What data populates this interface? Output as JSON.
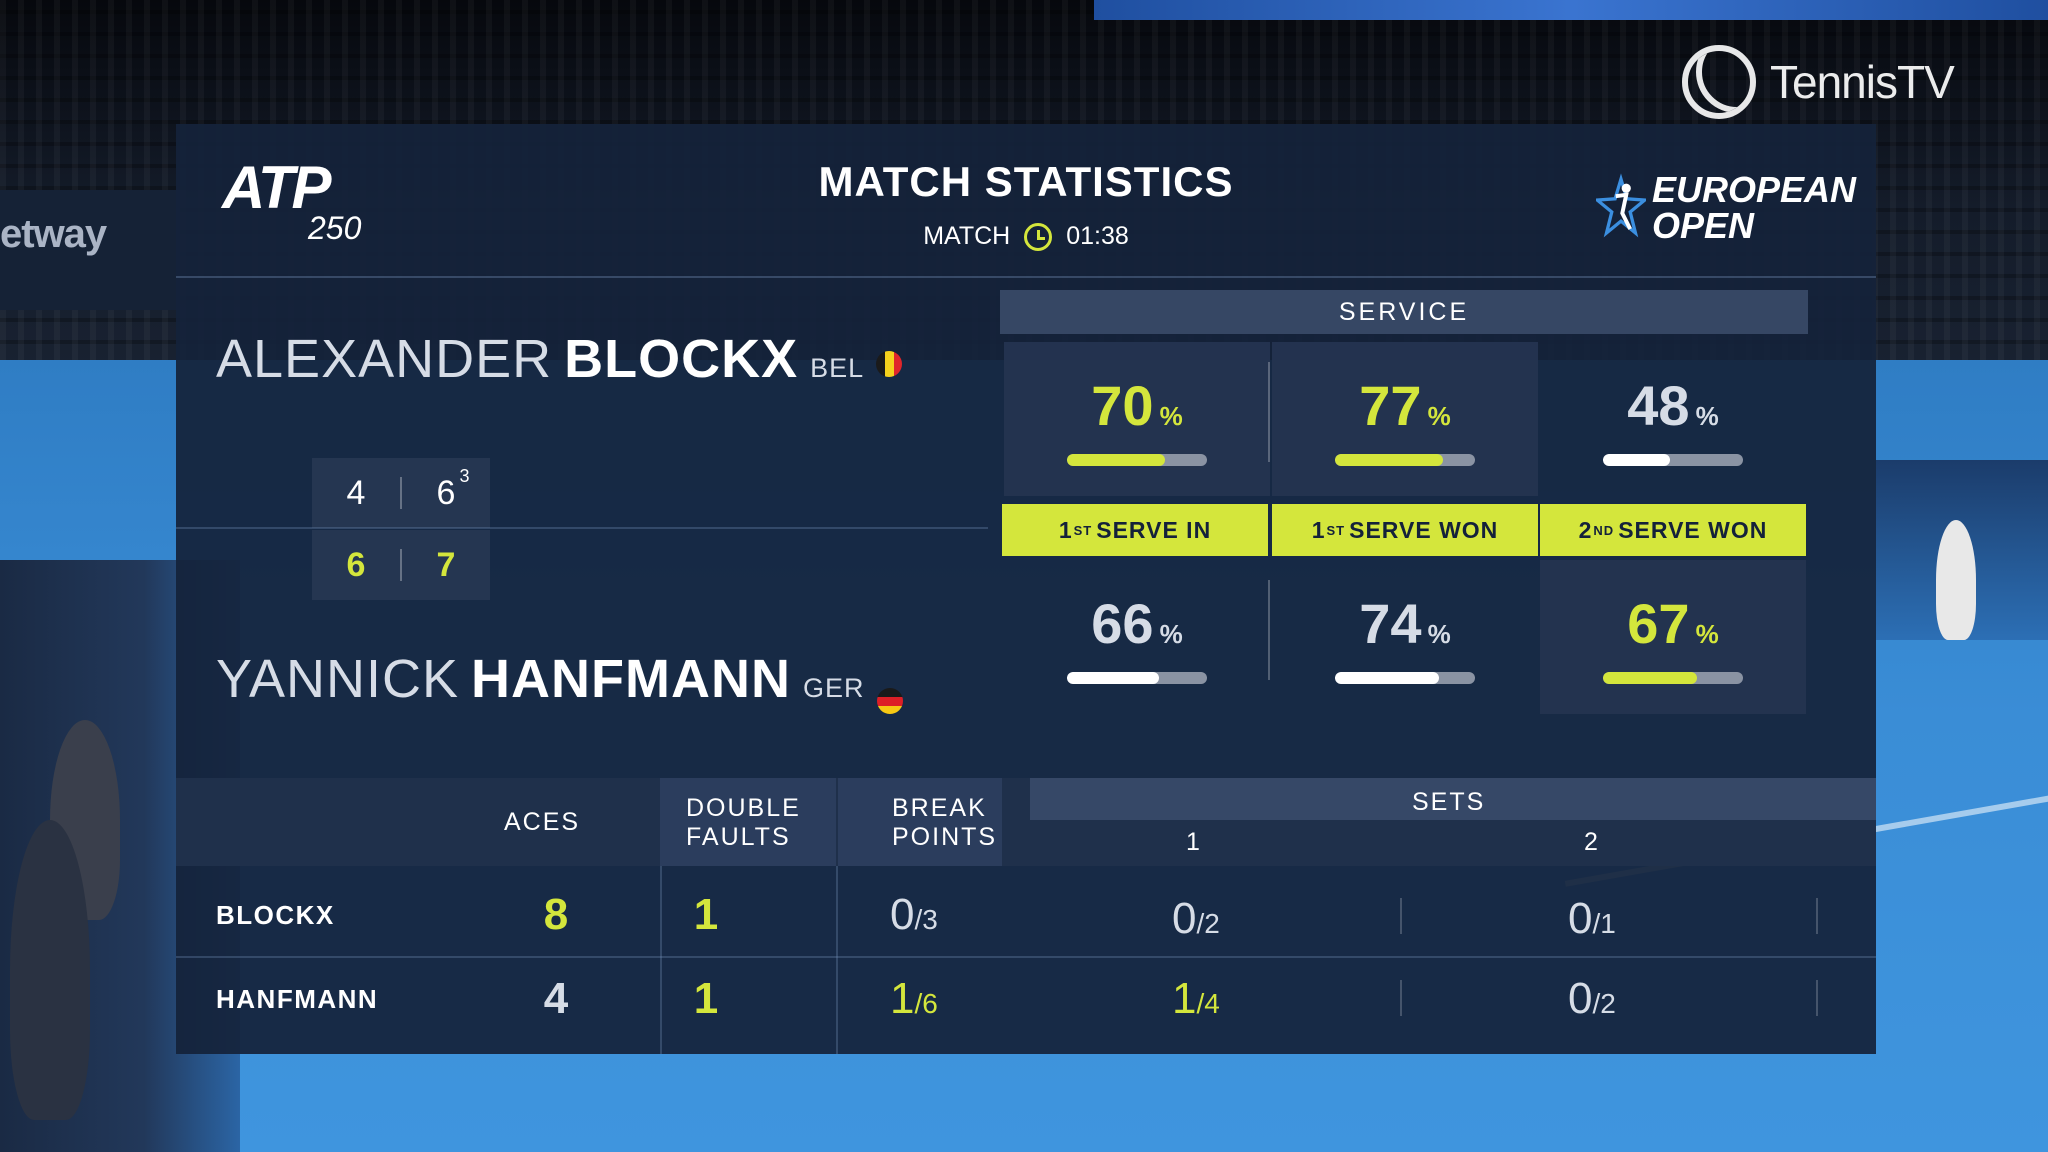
{
  "broadcaster": {
    "name": "TennisTV"
  },
  "background": {
    "sponsor_text": "etway"
  },
  "header": {
    "tour_logo": {
      "main": "ATP",
      "sub": "250"
    },
    "title": "MATCH STATISTICS",
    "match_label": "MATCH",
    "match_time": "01:38",
    "event_logo": {
      "line1": "EUROPEAN",
      "line2": "OPEN"
    }
  },
  "colors": {
    "accent": "#d4e63c",
    "panel": "#14223a",
    "text_muted": "#d6dce6"
  },
  "players": [
    {
      "first_name": "ALEXANDER",
      "last_name": "BLOCKX",
      "country": "BEL",
      "flag": [
        "#1a1a1a",
        "#f6d21c",
        "#e0262b"
      ],
      "sets": [
        {
          "games": "4",
          "tiebreak": ""
        },
        {
          "games": "6",
          "tiebreak": "3"
        }
      ]
    },
    {
      "first_name": "YANNICK",
      "last_name": "HANFMANN",
      "country": "GER",
      "flag": [
        "#1a1a1a",
        "#dd1f26",
        "#f7c913"
      ],
      "sets": [
        {
          "games": "6",
          "tiebreak": ""
        },
        {
          "games": "7",
          "tiebreak": ""
        }
      ]
    }
  ],
  "service": {
    "title": "SERVICE",
    "stats": [
      {
        "label_pre": "1",
        "label_sup": "ST",
        "label_post": "SERVE IN",
        "p1": 70,
        "p2": 66,
        "winner": "p1"
      },
      {
        "label_pre": "1",
        "label_sup": "ST",
        "label_post": "SERVE WON",
        "p1": 77,
        "p2": 74,
        "winner": "p1"
      },
      {
        "label_pre": "2",
        "label_sup": "ND",
        "label_post": "SERVE WON",
        "p1": 48,
        "p2": 67,
        "winner": "p2"
      }
    ],
    "pct_symbol": "%"
  },
  "table": {
    "headers": {
      "aces": "ACES",
      "double_faults_1": "DOUBLE",
      "double_faults_2": "FAULTS",
      "break_points_1": "BREAK",
      "break_points_2": "POINTS",
      "sets": "SETS",
      "set1": "1",
      "set2": "2"
    },
    "rows": [
      {
        "name": "BLOCKX",
        "aces": "8",
        "aces_lead": true,
        "double_faults": "1",
        "df_lead": true,
        "break_points": {
          "won": "0",
          "total": "/3",
          "lead": false
        },
        "set1_bp": {
          "won": "0",
          "total": "/2",
          "lead": false
        },
        "set2_bp": {
          "won": "0",
          "total": "/1",
          "lead": false
        }
      },
      {
        "name": "HANFMANN",
        "aces": "4",
        "aces_lead": false,
        "double_faults": "1",
        "df_lead": true,
        "break_points": {
          "won": "1",
          "total": "/6",
          "lead": true
        },
        "set1_bp": {
          "won": "1",
          "total": "/4",
          "lead": true
        },
        "set2_bp": {
          "won": "0",
          "total": "/2",
          "lead": false
        }
      }
    ]
  }
}
